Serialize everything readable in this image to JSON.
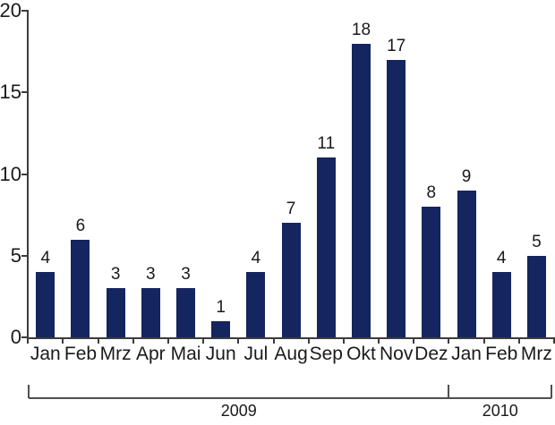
{
  "chart_data": {
    "type": "bar",
    "title": "",
    "xlabel": "",
    "ylabel": "",
    "categories": [
      "Jan",
      "Feb",
      "Mrz",
      "Apr",
      "Mai",
      "Jun",
      "Jul",
      "Aug",
      "Sep",
      "Okt",
      "Nov",
      "Dez",
      "Jan",
      "Feb",
      "Mrz"
    ],
    "values": [
      4,
      6,
      3,
      3,
      3,
      1,
      4,
      7,
      11,
      18,
      17,
      8,
      9,
      4,
      5
    ],
    "bar_value_labels": [
      "4",
      "6",
      "3",
      "3",
      "3",
      "1",
      "4",
      "7",
      "11",
      "18",
      "17",
      "8",
      "9",
      "4",
      "5"
    ],
    "ylim": [
      0,
      20
    ],
    "yticks": [
      0,
      5,
      10,
      15,
      20
    ],
    "ytick_labels": [
      "0",
      "5",
      "10",
      "15",
      "20"
    ],
    "grid": false,
    "legend": null,
    "year_groups": [
      {
        "label": "2009",
        "start_index": 0,
        "end_index": 12
      },
      {
        "label": "2010",
        "start_index": 12,
        "end_index": 15
      }
    ],
    "colors": {
      "bar": "#152560",
      "axis": "#3c3c3c",
      "bracket": "#4f4f4f",
      "text": "#1a1a1a",
      "background": "#ffffff"
    }
  }
}
